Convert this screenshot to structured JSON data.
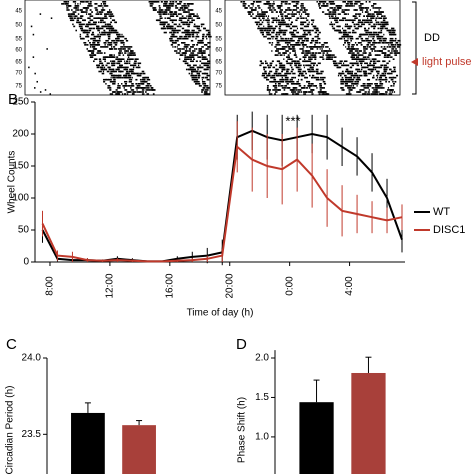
{
  "actogram": {
    "row_labels": [
      "45",
      "50",
      "55",
      "60",
      "65",
      "70",
      "75"
    ],
    "dd": "DD",
    "light_pulse": "light pulse"
  },
  "chart_data": [
    {
      "type": "line",
      "panel": "B",
      "annotation": "***",
      "xlabel": "Time of day (h)",
      "ylabel": "Wheel Counts",
      "x": [
        7.5,
        8.5,
        9.5,
        10.5,
        11.5,
        12.5,
        13.5,
        14.5,
        15.5,
        16.5,
        17.5,
        18.5,
        19.5,
        20.5,
        21.5,
        22.5,
        23.5,
        24.5,
        25.5,
        26.5,
        27.5,
        28.5,
        29.5,
        30.5,
        31.5
      ],
      "xlim": [
        7,
        31.7
      ],
      "xticks": [
        {
          "value": 8,
          "label": "8:00"
        },
        {
          "value": 12,
          "label": "12:00"
        },
        {
          "value": 16,
          "label": "16:00"
        },
        {
          "value": 20,
          "label": "20:00"
        },
        {
          "value": 24,
          "label": "0:00"
        },
        {
          "value": 28,
          "label": "4:00"
        }
      ],
      "ylim": [
        0,
        250
      ],
      "yticks": [
        0,
        50,
        100,
        150,
        200,
        250
      ],
      "series": [
        {
          "name": "WT",
          "color": "#000000",
          "values": [
            50,
            5,
            3,
            3,
            2,
            5,
            3,
            1,
            1,
            5,
            8,
            10,
            15,
            195,
            205,
            195,
            190,
            195,
            200,
            195,
            180,
            165,
            140,
            100,
            35
          ],
          "errors": [
            20,
            4,
            3,
            3,
            2,
            4,
            3,
            1,
            1,
            4,
            8,
            12,
            20,
            35,
            30,
            35,
            40,
            35,
            30,
            35,
            30,
            30,
            30,
            30,
            20
          ]
        },
        {
          "name": "DISC1",
          "color": "#c0392b",
          "values": [
            60,
            10,
            8,
            3,
            2,
            3,
            2,
            1,
            1,
            2,
            3,
            5,
            10,
            180,
            160,
            150,
            145,
            160,
            135,
            100,
            80,
            75,
            70,
            65,
            70
          ],
          "errors": [
            20,
            8,
            8,
            3,
            2,
            3,
            2,
            1,
            1,
            2,
            3,
            5,
            10,
            40,
            50,
            50,
            55,
            50,
            50,
            45,
            40,
            30,
            25,
            20,
            20
          ]
        }
      ]
    },
    {
      "type": "bar",
      "panel": "C",
      "ylabel": "Circadian Period (h)",
      "categories": [
        null,
        null
      ],
      "ylim": [
        23.24,
        24.0
      ],
      "yticks": [
        23.5,
        {
          "value": 24.0,
          "label": "24.0"
        }
      ],
      "colors": [
        "#000000",
        "#a8403a"
      ],
      "values": [
        23.64,
        23.56
      ],
      "errors": [
        0.066,
        0.03
      ]
    },
    {
      "type": "bar",
      "panel": "D",
      "ylabel": "Phase Shift (h)",
      "categories": [
        null,
        null
      ],
      "ylim": [
        0.53,
        2.1
      ],
      "yticks": [
        {
          "value": 1.0,
          "label": "1.0"
        },
        1.5,
        {
          "value": 2.0,
          "label": "2.0"
        }
      ],
      "colors": [
        "#000000",
        "#a8403a"
      ],
      "values": [
        1.44,
        1.81
      ],
      "errors": [
        0.28,
        0.2
      ]
    }
  ]
}
